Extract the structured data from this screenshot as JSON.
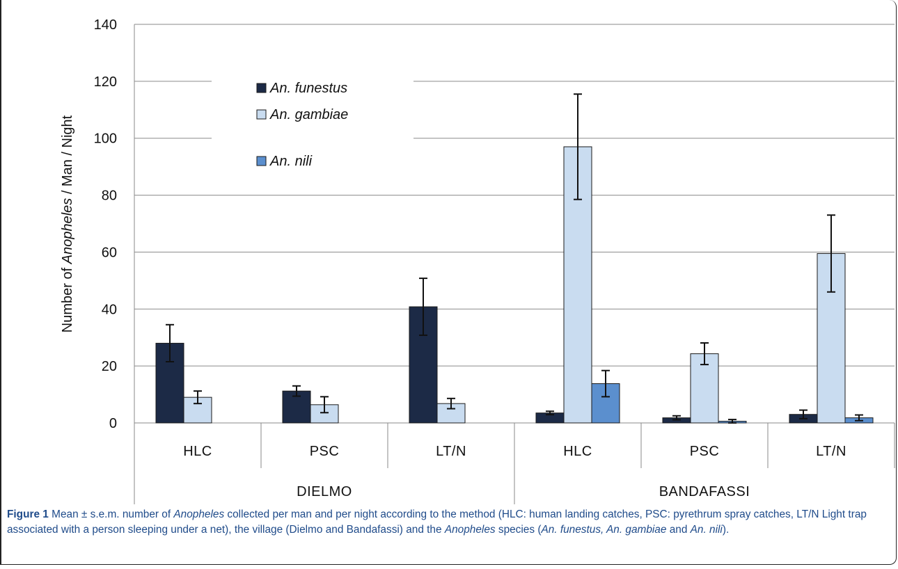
{
  "chart_data": {
    "type": "bar",
    "ylabel_parts": [
      "Number of ",
      "Anopheles",
      " / Man / Night"
    ],
    "ylim": [
      0,
      140
    ],
    "yticks": [
      0,
      20,
      40,
      60,
      80,
      100,
      120,
      140
    ],
    "grid": true,
    "legend_position": "top-left",
    "groups": [
      {
        "label": "DIELMO",
        "categories": [
          "HLC",
          "PSC",
          "LT/N"
        ]
      },
      {
        "label": "BANDAFASSI",
        "categories": [
          "HLC",
          "PSC",
          "LT/N"
        ]
      }
    ],
    "categories": [
      "HLC",
      "PSC",
      "LT/N",
      "HLC",
      "PSC",
      "LT/N"
    ],
    "series": [
      {
        "name": "An. funestus",
        "color": "#1c2a46",
        "values": [
          28,
          11.2,
          40.8,
          3.5,
          1.8,
          3.0
        ],
        "errors": [
          6.5,
          1.8,
          10,
          0.6,
          0.7,
          1.5
        ]
      },
      {
        "name": "An. gambiae",
        "color": "#c9dcf0",
        "values": [
          9,
          6.4,
          6.8,
          97,
          24.3,
          59.5
        ],
        "errors": [
          2.2,
          2.8,
          1.8,
          18.5,
          3.8,
          13.5
        ]
      },
      {
        "name": "An. nili",
        "color": "#5b8fce",
        "values": [
          0,
          0,
          0,
          13.8,
          0.6,
          1.8
        ],
        "errors": [
          0,
          0,
          0,
          4.6,
          0.6,
          1.0
        ]
      }
    ]
  },
  "caption": {
    "label": "Figure 1",
    "parts": [
      {
        "t": " Mean ± s.e.m. number of ",
        "i": false
      },
      {
        "t": "Anopheles",
        "i": true
      },
      {
        "t": " collected per man and per night according to the method (HLC: human landing catches, PSC: pyrethrum spray catches, LT/N Light trap associated with a person sleeping under a net), the village (Dielmo and Bandafassi) and the ",
        "i": false
      },
      {
        "t": "Anopheles",
        "i": true
      },
      {
        "t": " species (",
        "i": false
      },
      {
        "t": "An. funestus, An. gambiae",
        "i": true
      },
      {
        "t": " and ",
        "i": false
      },
      {
        "t": "An. nili",
        "i": true
      },
      {
        "t": ").",
        "i": false
      }
    ]
  }
}
